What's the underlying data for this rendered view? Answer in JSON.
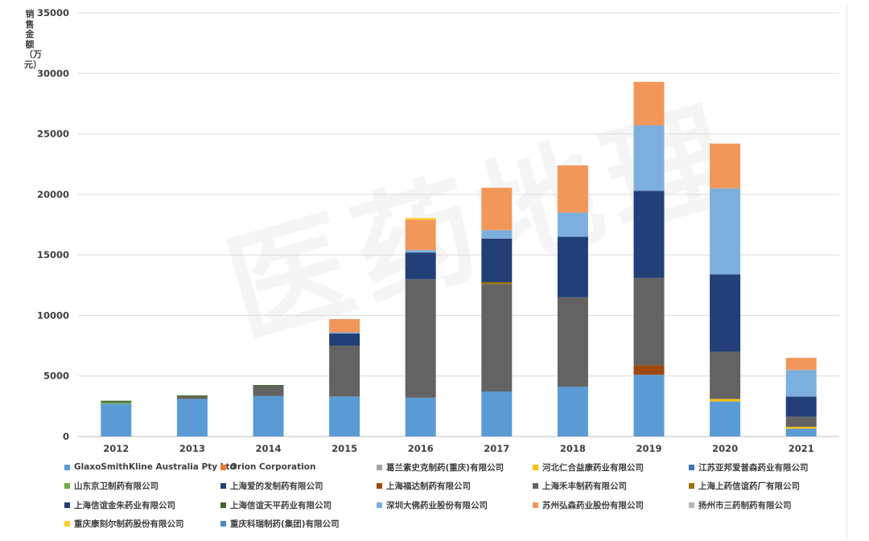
{
  "watermark": "医药地理",
  "chart_data": {
    "type": "bar",
    "stacked": true,
    "title": "",
    "xlabel": "",
    "ylabel": "销售金额（万元）",
    "ylim": [
      0,
      35000
    ],
    "yticks": [
      0,
      5000,
      10000,
      15000,
      20000,
      25000,
      30000,
      35000
    ],
    "grid": true,
    "legend_position": "bottom",
    "categories": [
      "2012",
      "2013",
      "2014",
      "2015",
      "2016",
      "2017",
      "2018",
      "2019",
      "2020",
      "2021"
    ],
    "series": [
      {
        "name": "GlaxoSmithKline Australia Pty Ltd",
        "color": "#5b9bd5",
        "values": [
          2700,
          3100,
          3350,
          3300,
          3200,
          3700,
          4100,
          5100,
          2900,
          650
        ]
      },
      {
        "name": "Orion Corporation",
        "color": "#ed7d31",
        "values": [
          0,
          0,
          0,
          0,
          0,
          0,
          0,
          0,
          0,
          0
        ]
      },
      {
        "name": "葛兰素史克制药(重庆)有限公司",
        "color": "#a5a5a5",
        "values": [
          0,
          0,
          0,
          0,
          0,
          0,
          0,
          0,
          0,
          0
        ]
      },
      {
        "name": "河北仁合益康药业有限公司",
        "color": "#ffc000",
        "values": [
          0,
          0,
          0,
          0,
          0,
          0,
          0,
          0,
          200,
          150
        ]
      },
      {
        "name": "江苏亚邦爱普森药业有限公司",
        "color": "#4472c4",
        "values": [
          0,
          0,
          0,
          0,
          0,
          0,
          0,
          0,
          0,
          0
        ]
      },
      {
        "name": "山东京卫制药有限公司",
        "color": "#70ad47",
        "values": [
          100,
          0,
          0,
          0,
          0,
          0,
          0,
          0,
          0,
          0
        ]
      },
      {
        "name": "上海爱的发制药有限公司",
        "color": "#264478",
        "values": [
          0,
          0,
          0,
          0,
          0,
          0,
          0,
          0,
          0,
          0
        ]
      },
      {
        "name": "上海福达制药有限公司",
        "color": "#9e480e",
        "values": [
          0,
          0,
          0,
          0,
          0,
          0,
          0,
          800,
          0,
          0
        ]
      },
      {
        "name": "上海禾丰制药有限公司",
        "color": "#636363",
        "values": [
          0,
          200,
          800,
          4200,
          9800,
          8900,
          7400,
          7200,
          3900,
          850
        ]
      },
      {
        "name": "上海上药信谊药厂有限公司",
        "color": "#997300",
        "values": [
          0,
          0,
          0,
          0,
          0,
          150,
          0,
          0,
          0,
          0
        ]
      },
      {
        "name": "上海信谊金朱药业有限公司",
        "color": "#223f78",
        "values": [
          0,
          0,
          0,
          1000,
          2200,
          3600,
          5000,
          7200,
          6400,
          1650
        ]
      },
      {
        "name": "上海信谊天平药业有限公司",
        "color": "#43682b",
        "values": [
          150,
          100,
          100,
          0,
          0,
          0,
          0,
          0,
          0,
          0
        ]
      },
      {
        "name": "深圳大佛药业股份有限公司",
        "color": "#7cafdd",
        "values": [
          0,
          0,
          0,
          100,
          200,
          700,
          2000,
          5400,
          7100,
          2200
        ]
      },
      {
        "name": "苏州弘森药业股份有限公司",
        "color": "#f1975a",
        "values": [
          0,
          0,
          0,
          1100,
          2500,
          3500,
          3900,
          3600,
          3700,
          1000
        ]
      },
      {
        "name": "扬州市三药制药有限公司",
        "color": "#b7b7b7",
        "values": [
          0,
          0,
          0,
          0,
          0,
          0,
          0,
          0,
          0,
          0
        ]
      },
      {
        "name": "重庆康刻尔制药股份有限公司",
        "color": "#ffcd33",
        "values": [
          0,
          0,
          0,
          0,
          150,
          0,
          0,
          0,
          0,
          0
        ]
      },
      {
        "name": "重庆科瑞制药(集团)有限公司",
        "color": "#4e89c0",
        "values": [
          0,
          0,
          0,
          0,
          0,
          0,
          0,
          0,
          0,
          0
        ]
      }
    ]
  }
}
